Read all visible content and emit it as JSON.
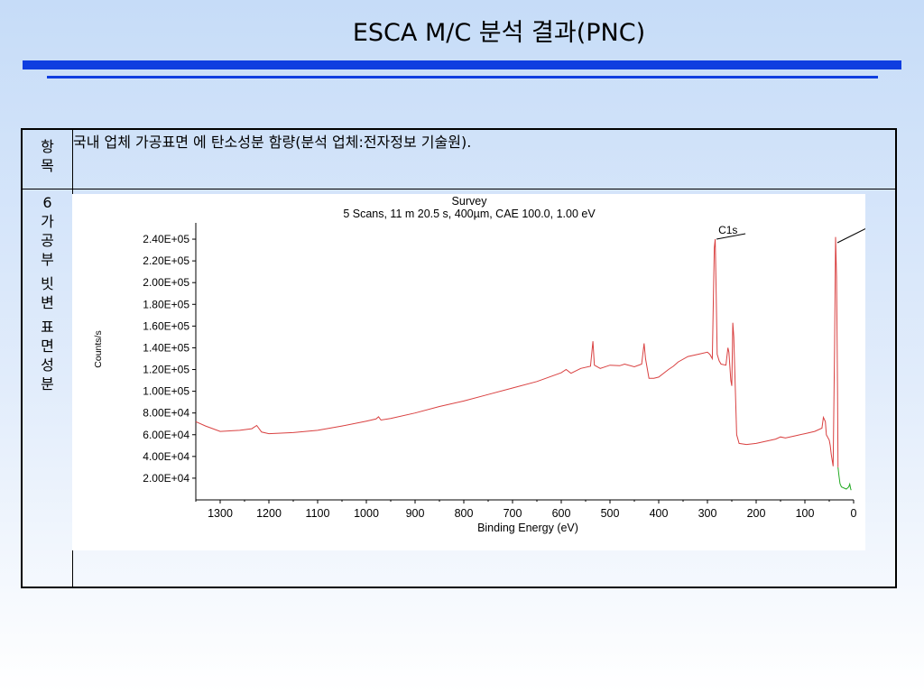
{
  "slide": {
    "title": "ESCA M/C 분석 결과(PNC)"
  },
  "table": {
    "row1": {
      "label_lines": [
        "항",
        "목"
      ],
      "text": "국내  업체 가공표면 에 탄소성분 함량(분석 업체:전자정보 기술원)."
    },
    "row2": {
      "label_lines": [
        "6",
        "가",
        "공",
        "부",
        "빗",
        "변",
        "표",
        "면",
        "성",
        "분"
      ]
    }
  },
  "chart_data": {
    "type": "line",
    "title": "Survey",
    "subtitle": "5 Scans,  11 m 20.5 s,  400µm,  CAE 100.0,  1.00 eV",
    "xlabel": "Binding Energy (eV)",
    "ylabel": "Counts/s",
    "xlim": [
      1350,
      0
    ],
    "ylim": [
      0,
      250000
    ],
    "x_ticks": [
      1300,
      1200,
      1100,
      1000,
      900,
      800,
      700,
      600,
      500,
      400,
      300,
      200,
      100,
      0
    ],
    "x_tick_labels": [
      "1300",
      "1200",
      "1100",
      "1000",
      "900",
      "800",
      "700",
      "600",
      "500",
      "400",
      "300",
      "200",
      "100",
      "0"
    ],
    "y_ticks": [
      20000,
      40000,
      60000,
      80000,
      100000,
      120000,
      140000,
      160000,
      180000,
      200000,
      220000,
      240000
    ],
    "y_tick_labels": [
      "2.00E+04",
      "4.00E+04",
      "6.00E+04",
      "8.00E+04",
      "1.00E+05",
      "1.20E+05",
      "1.40E+05",
      "1.60E+05",
      "1.80E+05",
      "2.00E+05",
      "2.20E+05",
      "2.40E+05"
    ],
    "annotations": [
      {
        "text": "C1s",
        "x": 285
      }
    ],
    "colors": {
      "spectrum": "#d94040",
      "tail": "#22aa22",
      "axis": "#000000"
    },
    "grid": false,
    "series": [
      {
        "values": [
          [
            1350,
            72000
          ],
          [
            1330,
            68000
          ],
          [
            1300,
            63000
          ],
          [
            1260,
            64000
          ],
          [
            1235,
            65500
          ],
          [
            1225,
            68500
          ],
          [
            1215,
            62500
          ],
          [
            1200,
            61000
          ],
          [
            1150,
            62000
          ],
          [
            1100,
            64000
          ],
          [
            1050,
            68000
          ],
          [
            1000,
            72500
          ],
          [
            980,
            74500
          ],
          [
            975,
            76500
          ],
          [
            970,
            73500
          ],
          [
            950,
            75000
          ],
          [
            900,
            80000
          ],
          [
            850,
            86000
          ],
          [
            800,
            91000
          ],
          [
            750,
            97000
          ],
          [
            700,
            103000
          ],
          [
            650,
            109000
          ],
          [
            600,
            117000
          ],
          [
            590,
            120000
          ],
          [
            580,
            116500
          ],
          [
            560,
            121000
          ],
          [
            540,
            123000
          ],
          [
            535,
            146000
          ],
          [
            532,
            124000
          ],
          [
            520,
            121000
          ],
          [
            500,
            124000
          ],
          [
            480,
            123500
          ],
          [
            470,
            125000
          ],
          [
            450,
            122500
          ],
          [
            435,
            125000
          ],
          [
            430,
            144000
          ],
          [
            427,
            130000
          ],
          [
            420,
            112000
          ],
          [
            410,
            112000
          ],
          [
            400,
            113000
          ],
          [
            380,
            120000
          ],
          [
            370,
            123000
          ],
          [
            360,
            127000
          ],
          [
            340,
            132000
          ],
          [
            320,
            134000
          ],
          [
            300,
            136000
          ],
          [
            295,
            134000
          ],
          [
            290,
            130000
          ],
          [
            286,
            232000
          ],
          [
            284,
            240000
          ],
          [
            282,
            190000
          ],
          [
            280,
            134000
          ],
          [
            276,
            128000
          ],
          [
            272,
            125000
          ],
          [
            262,
            124000
          ],
          [
            258,
            140000
          ],
          [
            256,
            136000
          ],
          [
            252,
            110000
          ],
          [
            250,
            105000
          ],
          [
            248,
            163000
          ],
          [
            246,
            150000
          ],
          [
            240,
            60000
          ],
          [
            235,
            52000
          ],
          [
            220,
            51000
          ],
          [
            200,
            52000
          ],
          [
            180,
            54000
          ],
          [
            160,
            56000
          ],
          [
            150,
            58000
          ],
          [
            140,
            57000
          ],
          [
            120,
            59000
          ],
          [
            100,
            61000
          ],
          [
            80,
            63000
          ],
          [
            65,
            66000
          ],
          [
            62,
            76000
          ],
          [
            58,
            72000
          ],
          [
            56,
            60000
          ],
          [
            50,
            55000
          ],
          [
            48,
            50000
          ],
          [
            46,
            42000
          ],
          [
            42,
            31000
          ],
          [
            39,
            140000
          ],
          [
            37,
            242000
          ],
          [
            35,
            205000
          ],
          [
            33,
            100000
          ],
          [
            32,
            30000
          ]
        ]
      },
      {
        "values": [
          [
            32,
            30000
          ],
          [
            30,
            22000
          ],
          [
            28,
            15000
          ],
          [
            25,
            12000
          ],
          [
            15,
            10000
          ],
          [
            10,
            12000
          ],
          [
            8,
            14500
          ],
          [
            6,
            10000
          ],
          [
            5,
            9000
          ]
        ]
      }
    ]
  }
}
